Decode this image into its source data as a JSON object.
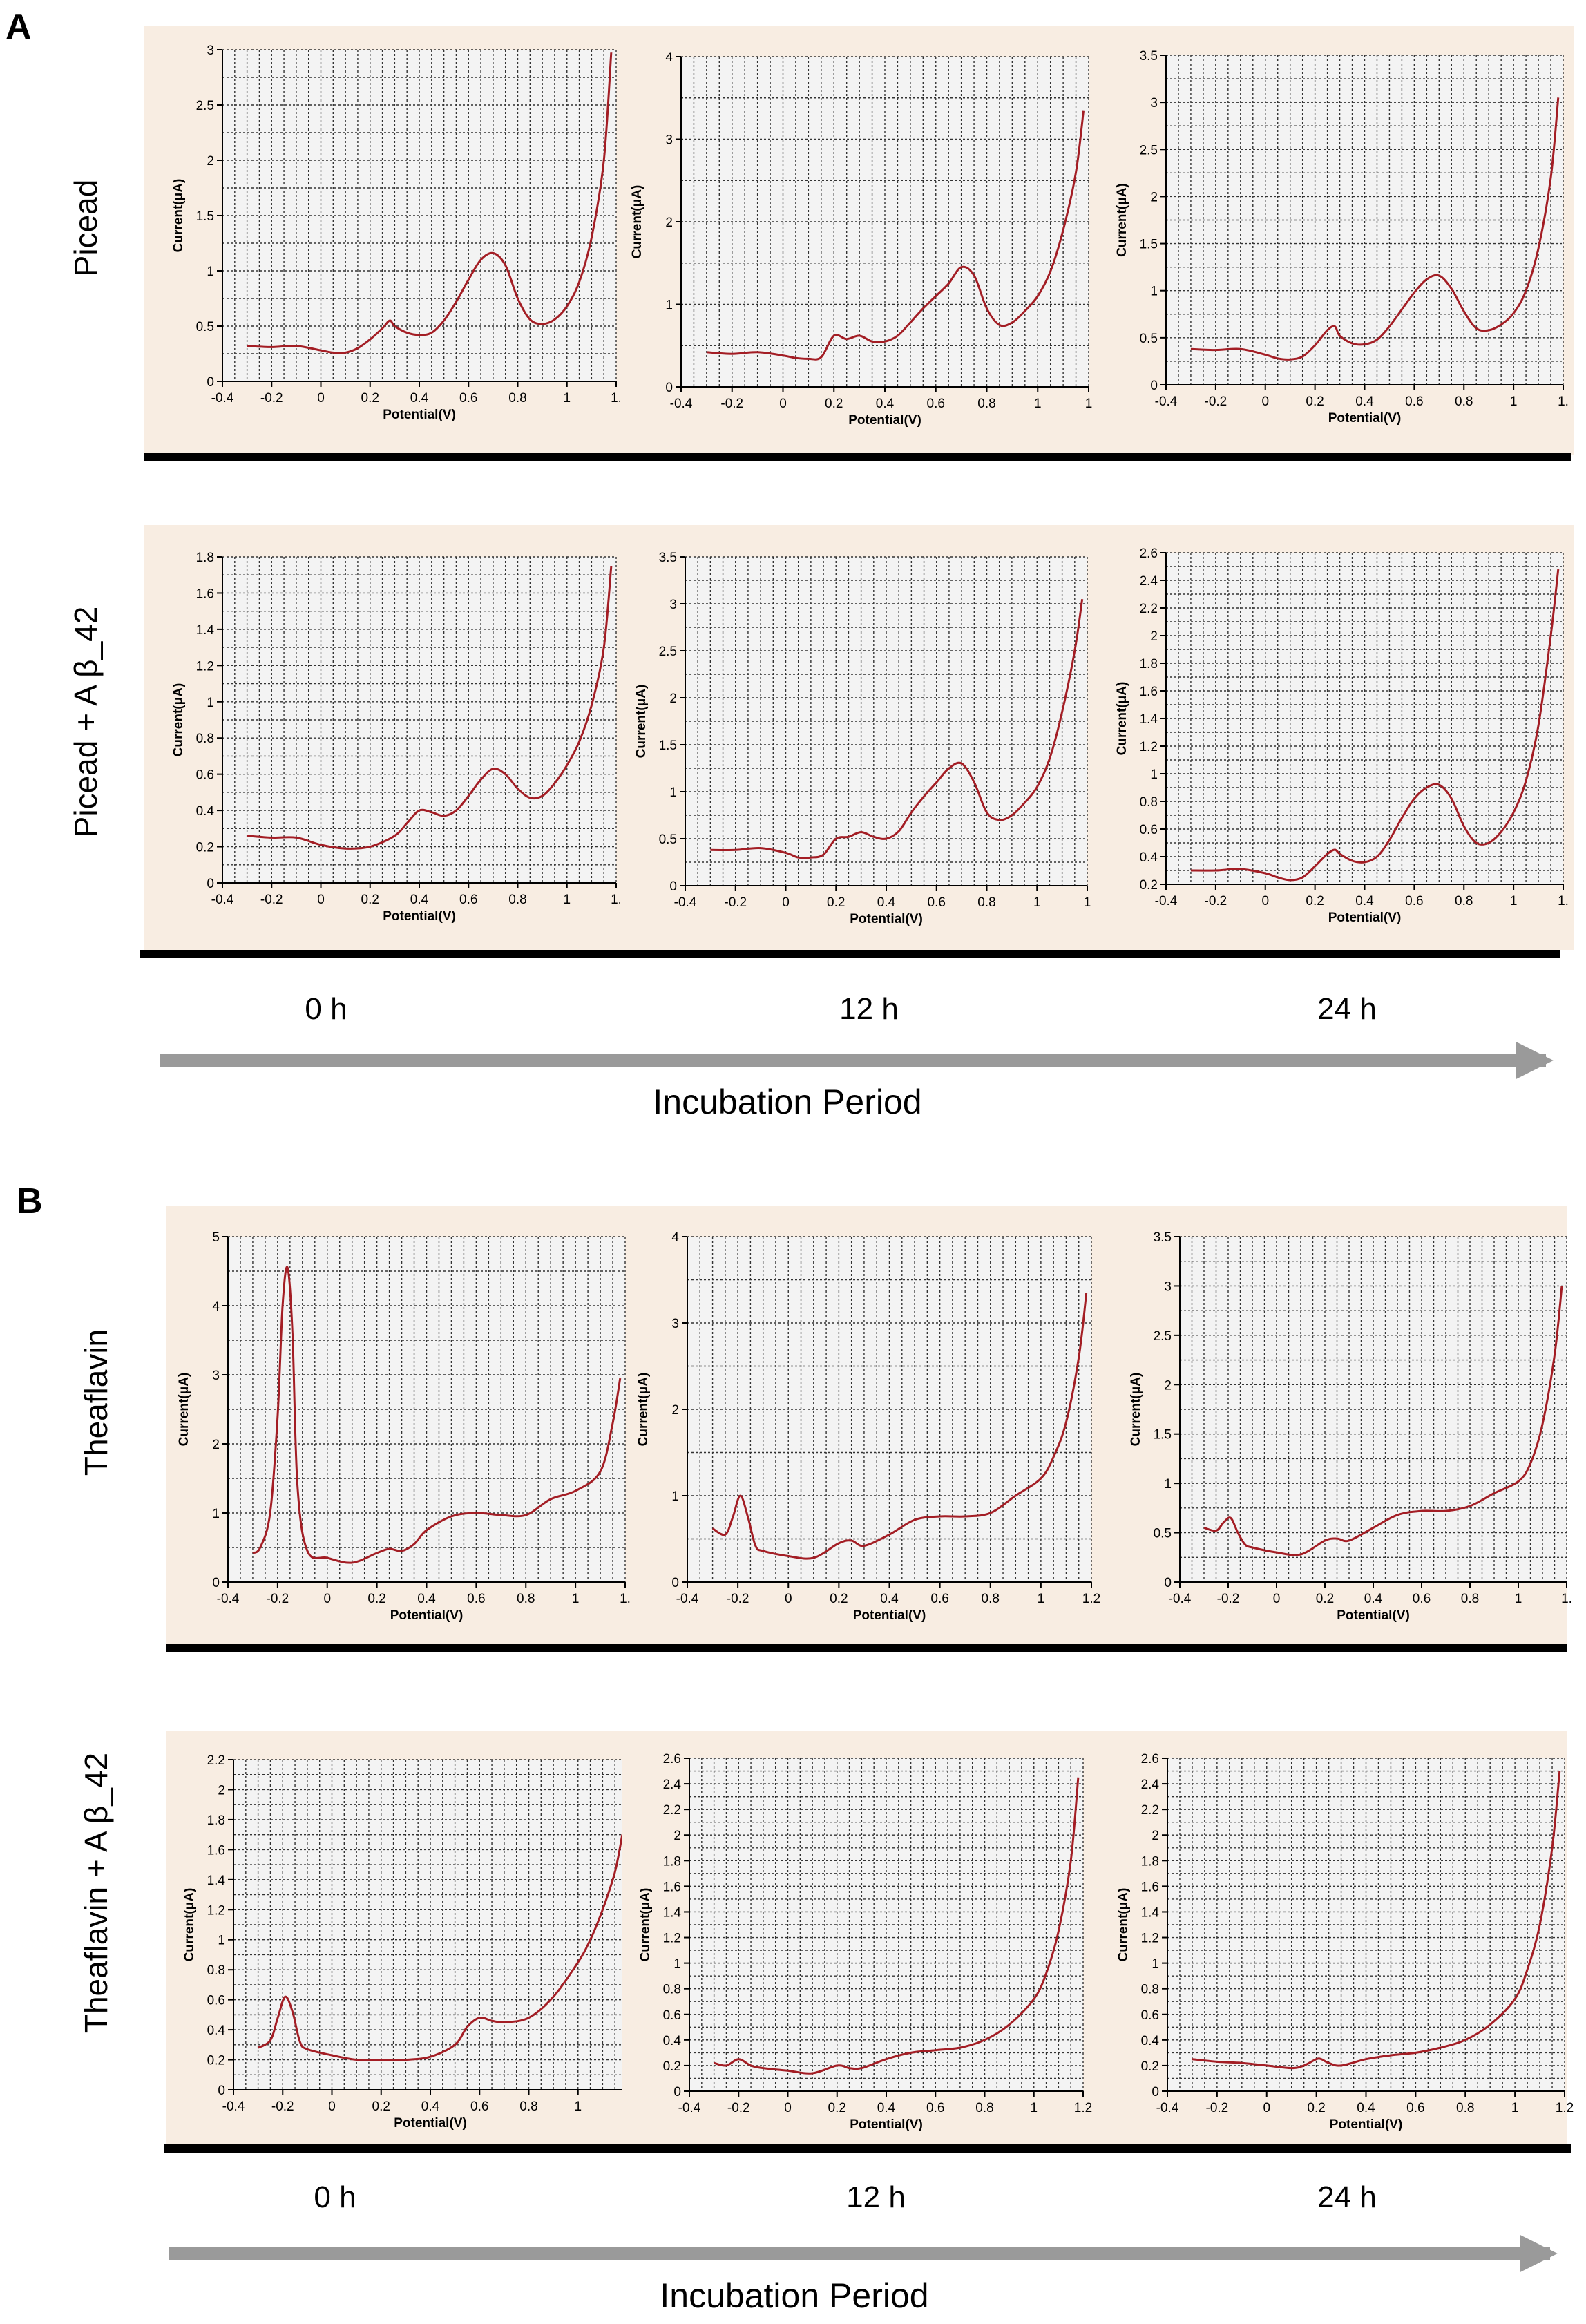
{
  "figure": {
    "panels": [
      {
        "letter": "A",
        "rows": [
          "Picead",
          "Picead + A β_42"
        ]
      },
      {
        "letter": "B",
        "rows": [
          "Theaflavin",
          "Theaflavin + A β_42"
        ]
      }
    ],
    "time_labels": [
      "0 h",
      "12 h",
      "24 h"
    ],
    "arrow_label": "Incubation Period"
  },
  "colors": {
    "curve": "#a31d24",
    "panel_bg": "#f8ede2",
    "plot_bg": "#f3f3f3",
    "grid": "#333333",
    "arrow": "#9a9a9a",
    "separator": "#000000"
  },
  "chart_data": [
    {
      "id": "A00",
      "panel": "A",
      "row": "Picead",
      "time": "0 h",
      "type": "line",
      "xlabel": "Potential(V)",
      "ylabel": "Current(μA)",
      "xlim": [
        -0.4,
        1.2
      ],
      "ylim": [
        0,
        3
      ],
      "xticks": [
        "-0.4",
        "-0.2",
        "0",
        "0.2",
        "0.4",
        "0.6",
        "0.8",
        "1",
        "1."
      ],
      "yticks": [
        "0",
        "0.5",
        "1",
        "1.5",
        "2",
        "2.5",
        "3"
      ],
      "x": [
        -0.3,
        -0.2,
        -0.1,
        0,
        0.05,
        0.1,
        0.15,
        0.2,
        0.25,
        0.28,
        0.3,
        0.35,
        0.4,
        0.45,
        0.5,
        0.55,
        0.6,
        0.65,
        0.7,
        0.75,
        0.8,
        0.85,
        0.9,
        0.95,
        1.0,
        1.05,
        1.1,
        1.15,
        1.18
      ],
      "y": [
        0.32,
        0.31,
        0.32,
        0.28,
        0.26,
        0.26,
        0.3,
        0.38,
        0.48,
        0.55,
        0.5,
        0.44,
        0.42,
        0.44,
        0.55,
        0.72,
        0.92,
        1.1,
        1.16,
        1.05,
        0.75,
        0.56,
        0.52,
        0.56,
        0.68,
        0.9,
        1.3,
        2.0,
        2.98
      ]
    },
    {
      "id": "A01",
      "panel": "A",
      "row": "Picead",
      "time": "12 h",
      "type": "line",
      "xlabel": "Potential(V)",
      "ylabel": "Current(μA)",
      "xlim": [
        -0.4,
        1.2
      ],
      "ylim": [
        0,
        4
      ],
      "xticks": [
        "-0.4",
        "-0.2",
        "0",
        "0.2",
        "0.4",
        "0.6",
        "0.8",
        "1",
        "1"
      ],
      "yticks": [
        "0",
        "1",
        "2",
        "3",
        "4"
      ],
      "x": [
        -0.3,
        -0.2,
        -0.1,
        0,
        0.05,
        0.1,
        0.15,
        0.2,
        0.25,
        0.3,
        0.35,
        0.4,
        0.45,
        0.5,
        0.55,
        0.6,
        0.65,
        0.7,
        0.75,
        0.8,
        0.85,
        0.9,
        0.95,
        1.0,
        1.05,
        1.1,
        1.15,
        1.18
      ],
      "y": [
        0.42,
        0.4,
        0.42,
        0.38,
        0.35,
        0.34,
        0.36,
        0.62,
        0.58,
        0.62,
        0.55,
        0.55,
        0.62,
        0.78,
        0.95,
        1.1,
        1.25,
        1.45,
        1.35,
        0.95,
        0.75,
        0.78,
        0.92,
        1.1,
        1.4,
        1.9,
        2.6,
        3.35
      ]
    },
    {
      "id": "A02",
      "panel": "A",
      "row": "Picead",
      "time": "24 h",
      "type": "line",
      "xlabel": "Potential(V)",
      "ylabel": "Current(μA)",
      "xlim": [
        -0.4,
        1.2
      ],
      "ylim": [
        0,
        3.5
      ],
      "xticks": [
        "-0.4",
        "-0.2",
        "0",
        "0.2",
        "0.4",
        "0.6",
        "0.8",
        "1",
        "1."
      ],
      "yticks": [
        "0",
        "0.5",
        "1",
        "1.5",
        "2",
        "2.5",
        "3",
        "3.5"
      ],
      "x": [
        -0.3,
        -0.2,
        -0.1,
        0,
        0.05,
        0.1,
        0.15,
        0.2,
        0.25,
        0.28,
        0.3,
        0.35,
        0.4,
        0.45,
        0.5,
        0.55,
        0.6,
        0.65,
        0.7,
        0.75,
        0.8,
        0.85,
        0.9,
        0.95,
        1.0,
        1.05,
        1.1,
        1.15,
        1.18
      ],
      "y": [
        0.38,
        0.37,
        0.38,
        0.32,
        0.28,
        0.27,
        0.3,
        0.42,
        0.58,
        0.62,
        0.52,
        0.44,
        0.43,
        0.48,
        0.62,
        0.8,
        0.98,
        1.12,
        1.16,
        1.02,
        0.78,
        0.6,
        0.58,
        0.64,
        0.76,
        1.0,
        1.45,
        2.2,
        3.05
      ]
    },
    {
      "id": "A10",
      "panel": "A",
      "row": "Picead + A β_42",
      "time": "0 h",
      "type": "line",
      "xlabel": "Potential(V)",
      "ylabel": "Current(μA)",
      "xlim": [
        -0.4,
        1.2
      ],
      "ylim": [
        0,
        1.8
      ],
      "xticks": [
        "-0.4",
        "-0.2",
        "0",
        "0.2",
        "0.4",
        "0.6",
        "0.8",
        "1",
        "1."
      ],
      "yticks": [
        "0",
        "0.2",
        "0.4",
        "0.6",
        "0.8",
        "1",
        "1.2",
        "1.4",
        "1.6",
        "1.8"
      ],
      "x": [
        -0.3,
        -0.2,
        -0.1,
        0,
        0.1,
        0.2,
        0.3,
        0.35,
        0.4,
        0.45,
        0.5,
        0.55,
        0.6,
        0.65,
        0.7,
        0.75,
        0.8,
        0.85,
        0.9,
        0.95,
        1.0,
        1.05,
        1.1,
        1.15,
        1.18
      ],
      "y": [
        0.26,
        0.25,
        0.25,
        0.21,
        0.19,
        0.2,
        0.26,
        0.33,
        0.4,
        0.39,
        0.37,
        0.4,
        0.48,
        0.57,
        0.63,
        0.6,
        0.52,
        0.47,
        0.48,
        0.55,
        0.65,
        0.78,
        0.98,
        1.3,
        1.75
      ]
    },
    {
      "id": "A11",
      "panel": "A",
      "row": "Picead + A β_42",
      "time": "12 h",
      "type": "line",
      "xlabel": "Potential(V)",
      "ylabel": "Current(μA)",
      "xlim": [
        -0.4,
        1.2
      ],
      "ylim": [
        0,
        3.5
      ],
      "xticks": [
        "-0.4",
        "-0.2",
        "0",
        "0.2",
        "0.4",
        "0.6",
        "0.8",
        "1",
        "1"
      ],
      "yticks": [
        "0",
        "0.5",
        "1",
        "1.5",
        "2",
        "2.5",
        "3",
        "3.5"
      ],
      "x": [
        -0.3,
        -0.2,
        -0.1,
        0,
        0.05,
        0.1,
        0.15,
        0.2,
        0.25,
        0.3,
        0.35,
        0.4,
        0.45,
        0.5,
        0.55,
        0.6,
        0.65,
        0.7,
        0.75,
        0.8,
        0.85,
        0.9,
        0.95,
        1.0,
        1.05,
        1.1,
        1.15,
        1.18
      ],
      "y": [
        0.38,
        0.38,
        0.4,
        0.35,
        0.3,
        0.3,
        0.33,
        0.5,
        0.52,
        0.57,
        0.52,
        0.5,
        0.58,
        0.78,
        0.95,
        1.1,
        1.25,
        1.3,
        1.1,
        0.78,
        0.7,
        0.75,
        0.88,
        1.05,
        1.35,
        1.85,
        2.5,
        3.05
      ]
    },
    {
      "id": "A12",
      "panel": "A",
      "row": "Picead + A β_42",
      "time": "24 h",
      "type": "line",
      "xlabel": "Potential(V)",
      "ylabel": "Current(μA)",
      "xlim": [
        -0.4,
        1.2
      ],
      "ylim": [
        0.2,
        2.6
      ],
      "xticks": [
        "-0.4",
        "-0.2",
        "0",
        "0.2",
        "0.4",
        "0.6",
        "0.8",
        "1",
        "1."
      ],
      "yticks": [
        "0.2",
        "0.4",
        "0.6",
        "0.8",
        "1",
        "1.2",
        "1.4",
        "1.6",
        "1.8",
        "2",
        "2.2",
        "2.4",
        "2.6"
      ],
      "x": [
        -0.3,
        -0.2,
        -0.1,
        0,
        0.05,
        0.1,
        0.15,
        0.2,
        0.25,
        0.28,
        0.3,
        0.35,
        0.4,
        0.45,
        0.5,
        0.55,
        0.6,
        0.65,
        0.7,
        0.75,
        0.8,
        0.85,
        0.9,
        0.95,
        1.0,
        1.05,
        1.1,
        1.15,
        1.18
      ],
      "y": [
        0.3,
        0.3,
        0.31,
        0.28,
        0.25,
        0.23,
        0.25,
        0.33,
        0.42,
        0.45,
        0.42,
        0.37,
        0.36,
        0.4,
        0.52,
        0.68,
        0.82,
        0.9,
        0.92,
        0.82,
        0.62,
        0.5,
        0.5,
        0.58,
        0.72,
        0.95,
        1.35,
        2.0,
        2.48
      ]
    },
    {
      "id": "B00",
      "panel": "B",
      "row": "Theaflavin",
      "time": "0 h",
      "type": "line",
      "xlabel": "Potential(V)",
      "ylabel": "Current(μA)",
      "xlim": [
        -0.4,
        1.2
      ],
      "ylim": [
        0,
        5
      ],
      "xticks": [
        "-0.4",
        "-0.2",
        "0",
        "0.2",
        "0.4",
        "0.6",
        "0.8",
        "1",
        "1."
      ],
      "yticks": [
        "0",
        "1",
        "2",
        "3",
        "4",
        "5"
      ],
      "x": [
        -0.3,
        -0.27,
        -0.23,
        -0.2,
        -0.18,
        -0.16,
        -0.14,
        -0.12,
        -0.08,
        0,
        0.1,
        0.2,
        0.25,
        0.3,
        0.35,
        0.4,
        0.5,
        0.6,
        0.7,
        0.8,
        0.9,
        1.0,
        1.1,
        1.15,
        1.18
      ],
      "y": [
        0.42,
        0.5,
        1.0,
        2.4,
        4.0,
        4.55,
        3.6,
        1.4,
        0.45,
        0.35,
        0.28,
        0.42,
        0.48,
        0.45,
        0.55,
        0.75,
        0.95,
        1.0,
        0.97,
        0.97,
        1.2,
        1.32,
        1.6,
        2.3,
        2.95
      ]
    },
    {
      "id": "B01",
      "panel": "B",
      "row": "Theaflavin",
      "time": "12 h",
      "type": "line",
      "xlabel": "Potential(V)",
      "ylabel": "Current(μA)",
      "xlim": [
        -0.4,
        1.2
      ],
      "ylim": [
        0,
        4
      ],
      "xticks": [
        "-0.4",
        "-0.2",
        "0",
        "0.2",
        "0.4",
        "0.6",
        "0.8",
        "1",
        "1.2"
      ],
      "yticks": [
        "0",
        "1",
        "2",
        "3",
        "4"
      ],
      "x": [
        -0.3,
        -0.25,
        -0.22,
        -0.19,
        -0.16,
        -0.13,
        -0.1,
        0,
        0.1,
        0.2,
        0.25,
        0.3,
        0.4,
        0.5,
        0.6,
        0.7,
        0.8,
        0.9,
        1.0,
        1.05,
        1.1,
        1.15,
        1.18
      ],
      "y": [
        0.62,
        0.55,
        0.75,
        1.0,
        0.75,
        0.42,
        0.36,
        0.3,
        0.28,
        0.45,
        0.48,
        0.42,
        0.55,
        0.72,
        0.76,
        0.76,
        0.8,
        1.0,
        1.2,
        1.45,
        1.85,
        2.6,
        3.35
      ]
    },
    {
      "id": "B02",
      "panel": "B",
      "row": "Theaflavin",
      "time": "24 h",
      "type": "line",
      "xlabel": "Potential(V)",
      "ylabel": "Current(μA)",
      "xlim": [
        -0.4,
        1.2
      ],
      "ylim": [
        0,
        3.5
      ],
      "xticks": [
        "-0.4",
        "-0.2",
        "0",
        "0.2",
        "0.4",
        "0.6",
        "0.8",
        "1",
        "1."
      ],
      "yticks": [
        "0",
        "0.5",
        "1",
        "1.5",
        "2",
        "2.5",
        "3",
        "3.5"
      ],
      "x": [
        -0.3,
        -0.25,
        -0.22,
        -0.19,
        -0.16,
        -0.13,
        -0.1,
        0,
        0.1,
        0.2,
        0.25,
        0.3,
        0.4,
        0.5,
        0.6,
        0.7,
        0.8,
        0.9,
        1.0,
        1.05,
        1.1,
        1.15,
        1.18
      ],
      "y": [
        0.55,
        0.52,
        0.6,
        0.65,
        0.5,
        0.38,
        0.35,
        0.3,
        0.28,
        0.42,
        0.44,
        0.42,
        0.55,
        0.68,
        0.72,
        0.72,
        0.77,
        0.9,
        1.02,
        1.2,
        1.6,
        2.3,
        3.0
      ]
    },
    {
      "id": "B10",
      "panel": "B",
      "row": "Theaflavin + A β_42",
      "time": "0 h",
      "type": "line",
      "xlabel": "Potential(V)",
      "ylabel": "Current(μA)",
      "xlim": [
        -0.4,
        1.2
      ],
      "ylim": [
        0,
        2.2
      ],
      "xticks": [
        "-0.4",
        "-0.2",
        "0",
        "0.2",
        "0.4",
        "0.6",
        "0.8",
        "1"
      ],
      "yticks": [
        "0",
        "0.2",
        "0.4",
        "0.6",
        "0.8",
        "1",
        "1.2",
        "1.4",
        "1.6",
        "1.8",
        "2",
        "2.2"
      ],
      "x": [
        -0.3,
        -0.25,
        -0.22,
        -0.19,
        -0.16,
        -0.13,
        -0.1,
        0,
        0.1,
        0.2,
        0.3,
        0.4,
        0.5,
        0.55,
        0.6,
        0.65,
        0.7,
        0.8,
        0.9,
        1.0,
        1.05,
        1.1,
        1.15,
        1.18
      ],
      "y": [
        0.28,
        0.33,
        0.48,
        0.62,
        0.52,
        0.32,
        0.27,
        0.23,
        0.2,
        0.2,
        0.2,
        0.22,
        0.3,
        0.42,
        0.48,
        0.46,
        0.45,
        0.48,
        0.62,
        0.85,
        1.0,
        1.2,
        1.45,
        1.7
      ]
    },
    {
      "id": "B11",
      "panel": "B",
      "row": "Theaflavin + A β_42",
      "time": "12 h",
      "type": "line",
      "xlabel": "Potential(V)",
      "ylabel": "Current(μA)",
      "xlim": [
        -0.4,
        1.2
      ],
      "ylim": [
        0,
        2.6
      ],
      "xticks": [
        "-0.4",
        "-0.2",
        "0",
        "0.2",
        "0.4",
        "0.6",
        "0.8",
        "1",
        "1.2"
      ],
      "yticks": [
        "0",
        "0.2",
        "0.4",
        "0.6",
        "0.8",
        "1",
        "1.2",
        "1.4",
        "1.6",
        "1.8",
        "2",
        "2.2",
        "2.4",
        "2.6"
      ],
      "x": [
        -0.3,
        -0.25,
        -0.2,
        -0.15,
        -0.1,
        0,
        0.1,
        0.2,
        0.25,
        0.3,
        0.4,
        0.5,
        0.6,
        0.7,
        0.8,
        0.9,
        1.0,
        1.05,
        1.1,
        1.15,
        1.18
      ],
      "y": [
        0.22,
        0.2,
        0.25,
        0.2,
        0.18,
        0.16,
        0.14,
        0.2,
        0.18,
        0.18,
        0.25,
        0.3,
        0.32,
        0.34,
        0.4,
        0.52,
        0.72,
        0.92,
        1.25,
        1.8,
        2.45
      ]
    },
    {
      "id": "B12",
      "panel": "B",
      "row": "Theaflavin + A β_42",
      "time": "24 h",
      "type": "line",
      "xlabel": "Potential(V)",
      "ylabel": "Current(μA)",
      "xlim": [
        -0.4,
        1.2
      ],
      "ylim": [
        0,
        2.6
      ],
      "xticks": [
        "-0.4",
        "-0.2",
        "0",
        "0.2",
        "0.4",
        "0.6",
        "0.8",
        "1",
        "1.2"
      ],
      "yticks": [
        "0",
        "0.2",
        "0.4",
        "0.6",
        "0.8",
        "1",
        "1.2",
        "1.4",
        "1.6",
        "1.8",
        "2",
        "2.2",
        "2.4",
        "2.6"
      ],
      "x": [
        -0.3,
        -0.2,
        -0.1,
        0,
        0.1,
        0.15,
        0.2,
        0.22,
        0.25,
        0.3,
        0.4,
        0.5,
        0.6,
        0.7,
        0.8,
        0.9,
        1.0,
        1.05,
        1.1,
        1.15,
        1.18
      ],
      "y": [
        0.25,
        0.23,
        0.22,
        0.2,
        0.18,
        0.2,
        0.25,
        0.25,
        0.22,
        0.2,
        0.25,
        0.28,
        0.3,
        0.34,
        0.4,
        0.52,
        0.72,
        0.95,
        1.3,
        1.9,
        2.5
      ]
    }
  ]
}
